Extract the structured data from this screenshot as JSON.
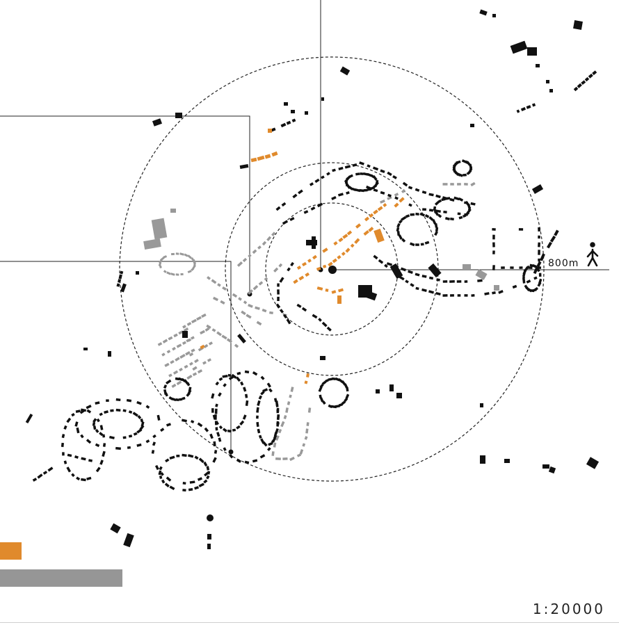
{
  "map": {
    "scale_label": "1:20000",
    "distance_label": "800m",
    "icons": [
      "walking-person-icon"
    ],
    "colors": {
      "existing_buildings": "#111111",
      "highlight_buildings": "#e08a2c",
      "grey_buildings": "#999999",
      "legend_orange": "#e08a2c",
      "legend_grey": "#969696"
    }
  }
}
